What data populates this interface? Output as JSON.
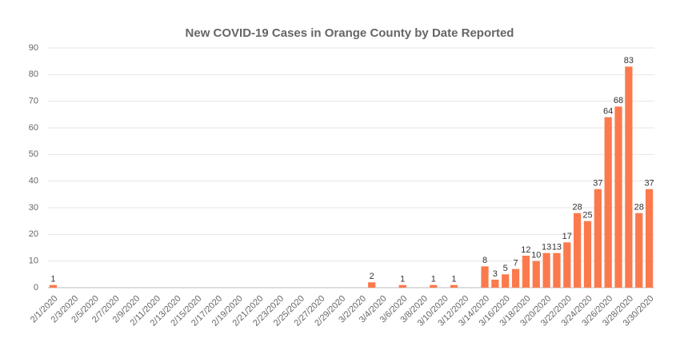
{
  "chart_data": {
    "type": "bar",
    "title": "New COVID-19 Cases in Orange County by Date Reported",
    "categories": [
      "2/1/2020",
      null,
      "2/3/2020",
      null,
      "2/5/2020",
      null,
      "2/7/2020",
      null,
      "2/9/2020",
      null,
      "2/11/2020",
      null,
      "2/13/2020",
      null,
      "2/15/2020",
      null,
      "2/17/2020",
      null,
      "2/19/2020",
      null,
      "2/21/2020",
      null,
      "2/23/2020",
      null,
      "2/25/2020",
      null,
      "2/27/2020",
      null,
      "2/29/2020",
      null,
      "3/2/2020",
      null,
      "3/4/2020",
      null,
      "3/6/2020",
      null,
      "3/8/2020",
      null,
      "3/10/2020",
      null,
      "3/12/2020",
      null,
      "3/14/2020",
      null,
      "3/16/2020",
      null,
      "3/18/2020",
      null,
      "3/20/2020",
      null,
      "3/22/2020",
      null,
      "3/24/2020",
      null,
      "3/26/2020",
      null,
      "3/28/2020",
      null,
      "3/30/2020"
    ],
    "values": [
      1,
      0,
      0,
      0,
      0,
      0,
      0,
      0,
      0,
      0,
      0,
      0,
      0,
      0,
      0,
      0,
      0,
      0,
      0,
      0,
      0,
      0,
      0,
      0,
      0,
      0,
      0,
      0,
      0,
      0,
      0,
      2,
      0,
      0,
      1,
      0,
      0,
      1,
      0,
      1,
      0,
      0,
      8,
      3,
      5,
      7,
      12,
      10,
      13,
      13,
      17,
      28,
      25,
      37,
      64,
      68,
      83,
      28,
      37
    ],
    "color": "#fb7a4d",
    "ylim": [
      0,
      90
    ],
    "yticks": [
      0,
      10,
      20,
      30,
      40,
      50,
      60,
      70,
      80,
      90
    ],
    "grid": true
  }
}
